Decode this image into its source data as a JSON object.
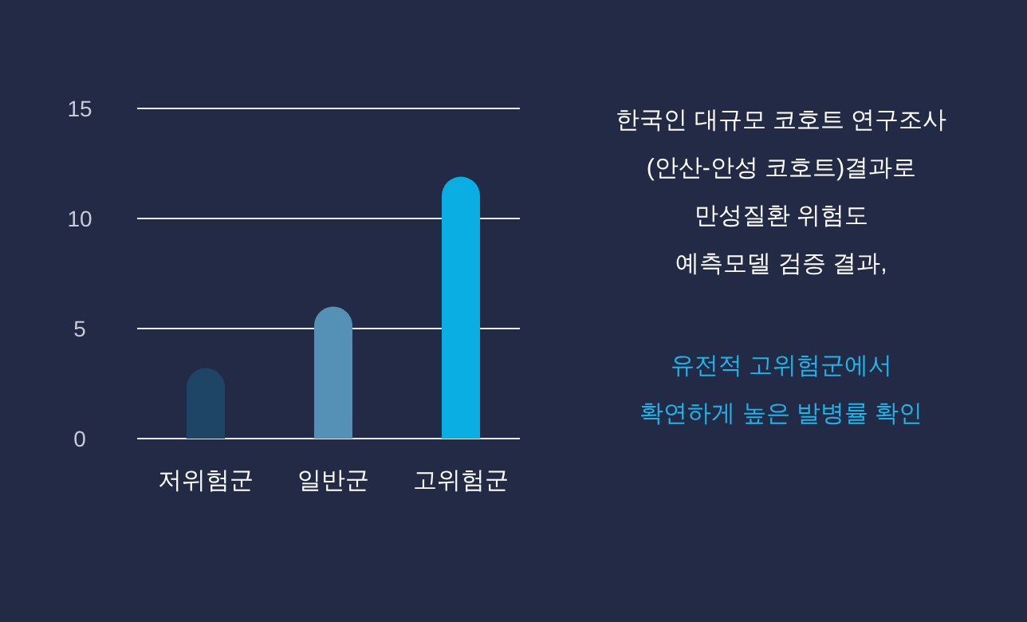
{
  "chart_data": {
    "type": "bar",
    "categories": [
      "저위험군",
      "일반군",
      "고위험군"
    ],
    "values": [
      3.2,
      6.0,
      11.9
    ],
    "colors": [
      "#1e4566",
      "#5590b6",
      "#0aaee2"
    ],
    "ylim": [
      0,
      15
    ],
    "yticks": [
      0,
      5,
      10,
      15
    ],
    "grid": "y",
    "annotations": [
      "한국인 대규모 코호트 연구조사\n(안산-안성 코호트)결과로\n만성질환 위험도\n예측모델 검증 결과,",
      "유전적 고위험군에서\n확연하게 높은 발병률 확인"
    ]
  }
}
